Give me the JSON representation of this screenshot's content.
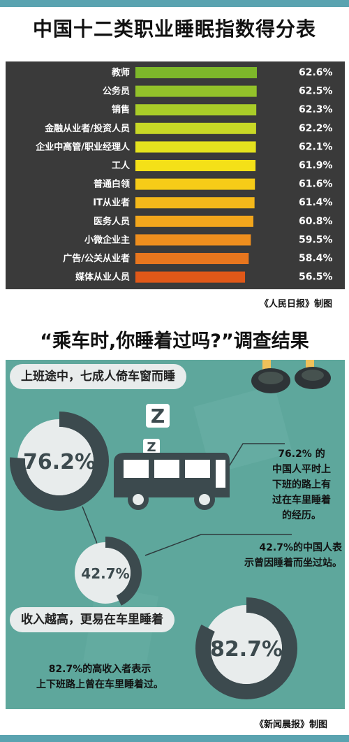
{
  "page": {
    "title1": "中国十二类职业睡眠指数得分表",
    "credit1": "《人民日报》制图",
    "title2": "“乘车时,你睡着过吗?”调查结果",
    "credit2": "《新闻晨报》制图"
  },
  "chart_data": {
    "type": "bar",
    "orientation": "horizontal",
    "title": "中国十二类职业睡眠指数得分表",
    "categories": [
      "教师",
      "公务员",
      "销售",
      "金融从业者/投资人员",
      "企业中高管/职业经理人",
      "工人",
      "普通白领",
      "IT从业者",
      "医务人员",
      "小微企业主",
      "广告/公关从业者",
      "媒体从业人员"
    ],
    "values": [
      62.6,
      62.5,
      62.3,
      62.2,
      62.1,
      61.9,
      61.6,
      61.4,
      60.8,
      59.5,
      58.4,
      56.5
    ],
    "value_labels": [
      "62.6%",
      "62.5%",
      "62.3%",
      "62.2%",
      "62.1%",
      "61.9%",
      "61.6%",
      "61.4%",
      "60.8%",
      "59.5%",
      "58.4%",
      "56.5%"
    ],
    "colors": [
      "#7db82a",
      "#93c22a",
      "#a9cc28",
      "#c8d826",
      "#e4e21e",
      "#f4e018",
      "#f6cc18",
      "#f4b81a",
      "#f2a61c",
      "#ee8e1e",
      "#e8761e",
      "#e05818"
    ],
    "xlim": [
      0,
      62.6
    ],
    "grid": false
  },
  "survey": {
    "heading1": "上班途中，七成人倚车窗而睡",
    "stat_a": "76.2%",
    "stat_a_value": 76.2,
    "stat_a_text": [
      "76.2% 的",
      "中国人平时上",
      "下班的路上有",
      "过在车里睡着",
      "的经历。"
    ],
    "stat_b": "42.7%",
    "stat_b_value": 42.7,
    "stat_b_text": [
      "42.7%的中国人表",
      "示曾因睡着而坐过站。"
    ],
    "heading2": "收入越高，更易在车里睡着",
    "stat_c": "82.7%",
    "stat_c_value": 82.7,
    "stat_c_text": [
      "82.7%的高收入者表示",
      "上下班路上曾在车里睡着过。"
    ],
    "zz": [
      "Z",
      "Z",
      "Z"
    ],
    "colors": {
      "bg": "#5ea79c",
      "ring": "#3c4a4e",
      "ring_track": "#e8ecec",
      "bus": "#3c4a4e"
    }
  }
}
